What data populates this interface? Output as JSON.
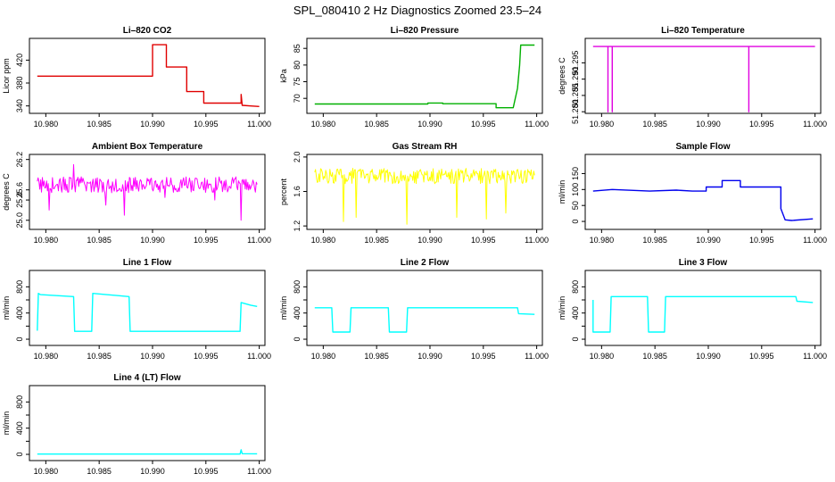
{
  "figure": {
    "title": "SPL_080410  2 Hz Diagnostics Zoomed 23.5–24"
  },
  "chart_data": [
    {
      "type": "line",
      "title": "Li–820 CO2",
      "ylabel": "Licor ppm",
      "color": "#e00000",
      "xlim": [
        10.9788,
        11.0002
      ],
      "ylim": [
        327,
        458
      ],
      "yticks": [
        340,
        380,
        420
      ],
      "ytick_labels": [
        "340",
        "380",
        "420"
      ],
      "xticks": [
        10.98,
        10.985,
        10.99,
        10.995,
        11.0
      ],
      "xtick_labels": [
        "10.980",
        "10.985",
        "10.990",
        "10.995",
        "11.000"
      ],
      "x": [
        10.9792,
        10.99,
        10.99,
        10.9913,
        10.9913,
        10.9932,
        10.9932,
        10.9948,
        10.9948,
        10.9972,
        10.9983,
        10.9983,
        10.9984,
        10.9992,
        11.0
      ],
      "y": [
        392,
        392,
        447,
        447,
        408,
        408,
        365,
        365,
        345,
        345,
        345,
        360,
        341,
        340,
        339
      ]
    },
    {
      "type": "line",
      "title": "Li–820 Pressure",
      "ylabel": "kPa",
      "color": "#00b000",
      "xlim": [
        10.9788,
        11.0002
      ],
      "ylim": [
        65.5,
        88
      ],
      "yticks": [
        70,
        75,
        80,
        85
      ],
      "ytick_labels": [
        "70",
        "75",
        "80",
        "85"
      ],
      "xticks": [
        10.98,
        10.985,
        10.99,
        10.995,
        11.0
      ],
      "xtick_labels": [
        "10.980",
        "10.985",
        "10.990",
        "10.995",
        "11.000"
      ],
      "x": [
        10.9792,
        10.9898,
        10.9898,
        10.9912,
        10.9912,
        10.9962,
        10.9962,
        10.9978,
        10.9982,
        10.9984,
        10.9985,
        10.9998
      ],
      "y": [
        68.3,
        68.3,
        68.6,
        68.6,
        68.4,
        68.4,
        67.2,
        67.2,
        73,
        80,
        86,
        86
      ]
    },
    {
      "type": "line",
      "title": "Li–820 Temperature",
      "ylabel": "degrees C",
      "color": "#e000e0",
      "xlim": [
        10.9788,
        11.0002
      ],
      "ylim": [
        51.2795,
        51.3025
      ],
      "yticks": [
        51.28,
        51.285,
        51.29,
        51.295
      ],
      "ytick_labels": [
        "51.280",
        "51.285",
        "51.290",
        "51.295"
      ],
      "xticks": [
        10.98,
        10.985,
        10.99,
        10.995,
        11.0
      ],
      "xtick_labels": [
        "10.980",
        "10.985",
        "10.990",
        "10.995",
        "11.000"
      ],
      "x": [
        10.9792,
        10.9806,
        10.9806,
        10.9806,
        10.981,
        10.981,
        10.981,
        10.9938,
        10.9938,
        10.9938,
        11.0
      ],
      "y": [
        51.3,
        51.3,
        51.28,
        51.3,
        51.3,
        51.28,
        51.3,
        51.3,
        51.28,
        51.3,
        51.3
      ]
    },
    {
      "type": "line",
      "title": "Ambient Box Temperature",
      "ylabel": "degrees C",
      "color": "#ff00ff",
      "xlim": [
        10.9788,
        11.0002
      ],
      "ylim": [
        24.82,
        26.3
      ],
      "yticks": [
        25.0,
        25.4,
        25.6,
        26.2
      ],
      "ytick_labels": [
        "25.0",
        "25.4",
        "25.6",
        "26.2"
      ],
      "xticks": [
        10.98,
        10.985,
        10.99,
        10.995,
        11.0
      ],
      "xtick_labels": [
        "10.980",
        "10.985",
        "10.990",
        "10.995",
        "11.000"
      ],
      "noise": {
        "base": 25.7,
        "amp": 0.16,
        "count": 260,
        "spikes": [
          [
            10.9803,
            25.2
          ],
          [
            10.9826,
            26.1
          ],
          [
            10.9856,
            25.3
          ],
          [
            10.9874,
            25.1
          ],
          [
            10.9912,
            25.45
          ],
          [
            10.9958,
            25.4
          ],
          [
            10.9983,
            25.0
          ]
        ]
      }
    },
    {
      "type": "line",
      "title": "Gas Stream RH",
      "ylabel": "percent",
      "color": "#ffff00",
      "xlim": [
        10.9788,
        11.0002
      ],
      "ylim": [
        1.16,
        2.03
      ],
      "yticks": [
        1.2,
        1.6,
        2.0
      ],
      "ytick_labels": [
        "1.2",
        "1.6",
        "2.0"
      ],
      "xticks": [
        10.98,
        10.985,
        10.99,
        10.995,
        11.0
      ],
      "xtick_labels": [
        "10.980",
        "10.985",
        "10.990",
        "10.995",
        "11.000"
      ],
      "noise": {
        "base": 1.78,
        "amp": 0.09,
        "count": 260,
        "spikes": [
          [
            10.9819,
            1.25
          ],
          [
            10.9831,
            1.3
          ],
          [
            10.9878,
            1.22
          ],
          [
            10.9925,
            1.3
          ],
          [
            10.9953,
            1.28
          ],
          [
            10.9971,
            1.35
          ]
        ]
      }
    },
    {
      "type": "line",
      "title": "Sample Flow",
      "ylabel": "ml/min",
      "color": "#0000ee",
      "xlim": [
        10.9788,
        11.0002
      ],
      "ylim": [
        -25,
        210
      ],
      "yticks": [
        0,
        50,
        100,
        150
      ],
      "ytick_labels": [
        "0",
        "50",
        "100",
        "150"
      ],
      "xticks": [
        10.98,
        10.985,
        10.99,
        10.995,
        11.0
      ],
      "xtick_labels": [
        "10.980",
        "10.985",
        "10.990",
        "10.995",
        "11.000"
      ],
      "x": [
        10.9792,
        10.981,
        10.9845,
        10.987,
        10.9885,
        10.9898,
        10.9898,
        10.9913,
        10.9913,
        10.993,
        10.993,
        10.9968,
        10.9968,
        10.9972,
        10.9978,
        10.9998
      ],
      "y": [
        95,
        100,
        95,
        98,
        95,
        95,
        108,
        108,
        128,
        128,
        108,
        108,
        40,
        5,
        3,
        8
      ]
    },
    {
      "type": "line",
      "title": "Line 1 Flow",
      "ylabel": "ml/min",
      "color": "#00ffff",
      "xlim": [
        10.9788,
        11.0002
      ],
      "ylim": [
        -95,
        1050
      ],
      "yticks": [
        0,
        200,
        400,
        600,
        800
      ],
      "ytick_labels": [
        "0",
        "",
        "400",
        "",
        "800"
      ],
      "xticks": [
        10.98,
        10.985,
        10.99,
        10.995,
        11.0
      ],
      "xtick_labels": [
        "10.980",
        "10.985",
        "10.990",
        "10.995",
        "11.000"
      ],
      "x": [
        10.9792,
        10.9793,
        10.9795,
        10.9826,
        10.9827,
        10.9843,
        10.9844,
        10.9878,
        10.9879,
        10.9982,
        10.9983,
        10.9992,
        10.9998
      ],
      "y": [
        130,
        700,
        680,
        650,
        120,
        120,
        700,
        650,
        120,
        120,
        560,
        520,
        500
      ]
    },
    {
      "type": "line",
      "title": "Line 2 Flow",
      "ylabel": "ml/min",
      "color": "#00ffff",
      "xlim": [
        10.9788,
        11.0002
      ],
      "ylim": [
        -95,
        1050
      ],
      "yticks": [
        0,
        200,
        400,
        600,
        800
      ],
      "ytick_labels": [
        "0",
        "",
        "400",
        "",
        "800"
      ],
      "xticks": [
        10.98,
        10.985,
        10.99,
        10.995,
        11.0
      ],
      "xtick_labels": [
        "10.980",
        "10.985",
        "10.990",
        "10.995",
        "11.000"
      ],
      "x": [
        10.9792,
        10.9808,
        10.9809,
        10.9825,
        10.9826,
        10.9861,
        10.9862,
        10.9878,
        10.9879,
        10.9982,
        10.9983,
        10.9998
      ],
      "y": [
        480,
        480,
        110,
        110,
        480,
        480,
        110,
        110,
        480,
        480,
        390,
        380
      ]
    },
    {
      "type": "line",
      "title": "Line 3 Flow",
      "ylabel": "ml/min",
      "color": "#00ffff",
      "xlim": [
        10.9788,
        11.0002
      ],
      "ylim": [
        -95,
        1050
      ],
      "yticks": [
        0,
        200,
        400,
        600,
        800
      ],
      "ytick_labels": [
        "0",
        "",
        "400",
        "",
        "800"
      ],
      "xticks": [
        10.98,
        10.985,
        10.99,
        10.995,
        11.0
      ],
      "xtick_labels": [
        "10.980",
        "10.985",
        "10.990",
        "10.995",
        "11.000"
      ],
      "x": [
        10.9792,
        10.9792,
        10.9793,
        10.9808,
        10.9809,
        10.9843,
        10.9844,
        10.9859,
        10.986,
        10.9982,
        10.9983,
        10.9998
      ],
      "y": [
        600,
        110,
        110,
        110,
        650,
        650,
        110,
        110,
        650,
        650,
        580,
        560
      ]
    },
    {
      "type": "line",
      "title": "Line 4 (LT) Flow",
      "ylabel": "ml/min",
      "color": "#00ffff",
      "xlim": [
        10.9788,
        11.0002
      ],
      "ylim": [
        -95,
        1050
      ],
      "yticks": [
        0,
        200,
        400,
        600,
        800
      ],
      "ytick_labels": [
        "0",
        "",
        "400",
        "",
        "800"
      ],
      "xticks": [
        10.98,
        10.985,
        10.99,
        10.995,
        11.0
      ],
      "xtick_labels": [
        "10.980",
        "10.985",
        "10.990",
        "10.995",
        "11.000"
      ],
      "x": [
        10.9792,
        10.9982,
        10.9983,
        10.9984,
        10.9998
      ],
      "y": [
        5,
        5,
        70,
        10,
        8
      ]
    }
  ]
}
